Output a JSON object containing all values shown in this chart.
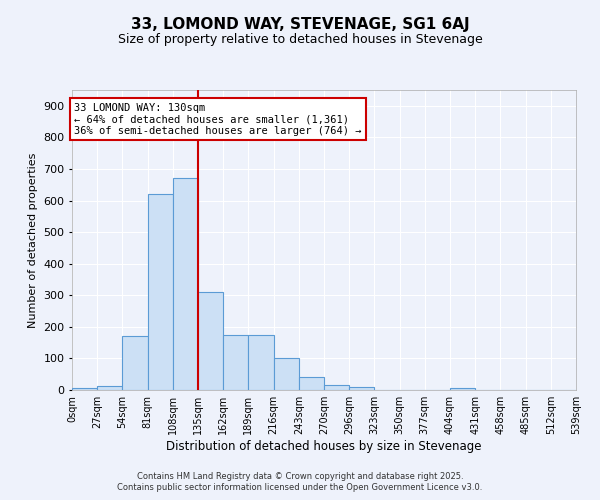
{
  "title1": "33, LOMOND WAY, STEVENAGE, SG1 6AJ",
  "title2": "Size of property relative to detached houses in Stevenage",
  "xlabel": "Distribution of detached houses by size in Stevenage",
  "ylabel": "Number of detached properties",
  "bin_edges": [
    0,
    27,
    54,
    81,
    108,
    135,
    162,
    189,
    216,
    243,
    270,
    297,
    324,
    351,
    378,
    405,
    432,
    459,
    486,
    513,
    540
  ],
  "counts": [
    7,
    12,
    170,
    620,
    670,
    310,
    175,
    175,
    100,
    40,
    15,
    10,
    0,
    0,
    0,
    7,
    0,
    0,
    0,
    0
  ],
  "bar_facecolor": "#cce0f5",
  "bar_edgecolor": "#5b9bd5",
  "vline_x": 135,
  "vline_color": "#cc0000",
  "annotation_line1": "33 LOMOND WAY: 130sqm",
  "annotation_line2": "← 64% of detached houses are smaller (1,361)",
  "annotation_line3": "36% of semi-detached houses are larger (764) →",
  "annotation_box_facecolor": "#ffffff",
  "annotation_box_edgecolor": "#cc0000",
  "ylim_max": 950,
  "yticks": [
    0,
    100,
    200,
    300,
    400,
    500,
    600,
    700,
    800,
    900
  ],
  "xtick_labels": [
    "0sqm",
    "27sqm",
    "54sqm",
    "81sqm",
    "108sqm",
    "135sqm",
    "162sqm",
    "189sqm",
    "216sqm",
    "243sqm",
    "270sqm",
    "296sqm",
    "323sqm",
    "350sqm",
    "377sqm",
    "404sqm",
    "431sqm",
    "458sqm",
    "485sqm",
    "512sqm",
    "539sqm"
  ],
  "bg_color": "#eef2fb",
  "grid_color": "#ffffff",
  "footer1": "Contains HM Land Registry data © Crown copyright and database right 2025.",
  "footer2": "Contains public sector information licensed under the Open Government Licence v3.0.",
  "title1_fontsize": 11,
  "title2_fontsize": 9,
  "ylabel_fontsize": 8,
  "xlabel_fontsize": 8.5,
  "footer_fontsize": 6
}
